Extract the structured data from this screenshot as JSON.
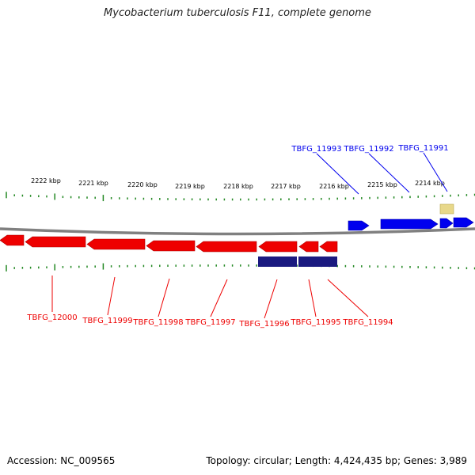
{
  "title": "Mycobacterium tuberculosis F11, complete genome",
  "footer": {
    "accession": "Accession: NC_009565",
    "summary": "Topology: circular; Length: 4,424,435 bp; Genes: 3,989"
  },
  "colors": {
    "forward_gene": "#0000ee",
    "reverse_gene": "#ee0000",
    "feature_dark": "#1a1a80",
    "misc_feature": "#e8d88a",
    "tick": "#228822",
    "backbone": "#808080"
  },
  "scale_labels": [
    "2222 kbp",
    "2221 kbp",
    "2220 kbp",
    "2219 kbp",
    "2218 kbp",
    "2217 kbp",
    "2216 kbp",
    "2215 kbp",
    "2214 kbp"
  ],
  "forward_gene_labels": [
    "TBFG_11993",
    "TBFG_11992",
    "TBFG_11991"
  ],
  "reverse_gene_labels": [
    "TBFG_12000",
    "TBFG_11999",
    "TBFG_11998",
    "TBFG_11997",
    "TBFG_11996",
    "TBFG_11995",
    "TBFG_11994"
  ]
}
